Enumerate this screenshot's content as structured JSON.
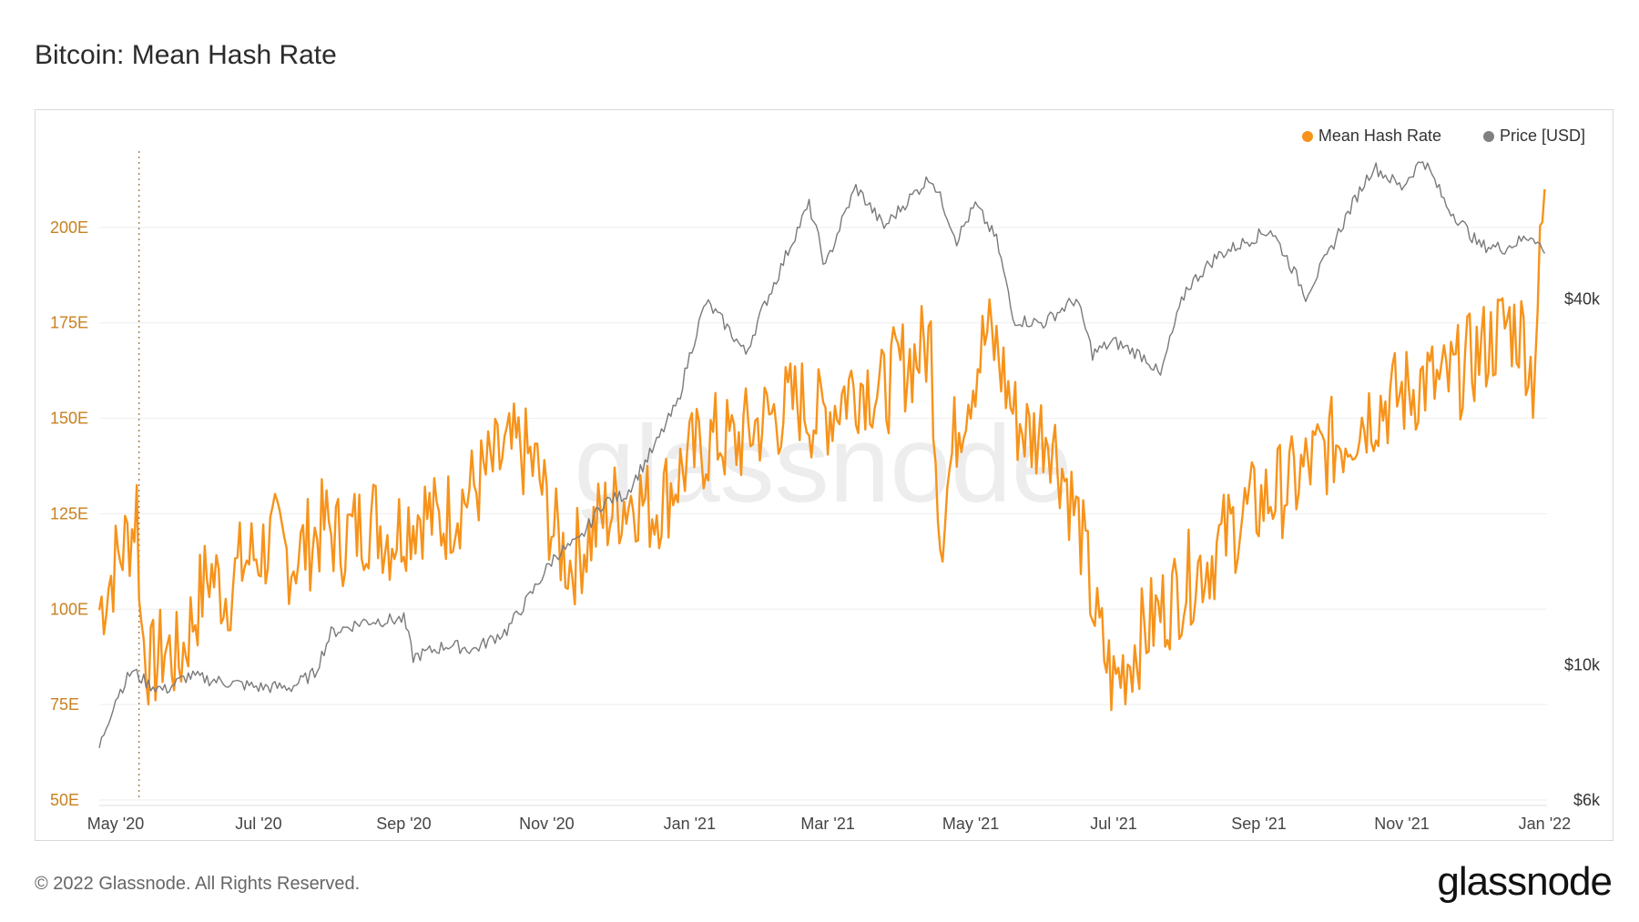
{
  "title": "Bitcoin: Mean Hash Rate",
  "footer": "© 2022 Glassnode. All Rights Reserved.",
  "brand": "glassnode",
  "watermark": "glassnode",
  "legend": [
    {
      "label": "Mean Hash Rate",
      "color": "#f7931a"
    },
    {
      "label": "Price [USD]",
      "color": "#808080"
    }
  ],
  "chart_data": {
    "type": "line",
    "title": "Bitcoin: Mean Hash Rate",
    "x_range": [
      "2020-04-24",
      "2022-01-02"
    ],
    "x_ticks": [
      {
        "label": "May '20",
        "date": "2020-05-01"
      },
      {
        "label": "Jul '20",
        "date": "2020-07-01"
      },
      {
        "label": "Sep '20",
        "date": "2020-09-01"
      },
      {
        "label": "Nov '20",
        "date": "2020-11-01"
      },
      {
        "label": "Jan '21",
        "date": "2021-01-01"
      },
      {
        "label": "Mar '21",
        "date": "2021-03-01"
      },
      {
        "label": "May '21",
        "date": "2021-05-01"
      },
      {
        "label": "Jul '21",
        "date": "2021-07-01"
      },
      {
        "label": "Sep '21",
        "date": "2021-09-01"
      },
      {
        "label": "Nov '21",
        "date": "2021-11-01"
      },
      {
        "label": "Jan '22",
        "date": "2022-01-01"
      }
    ],
    "y_left": {
      "unit": "E",
      "range": [
        50,
        220
      ],
      "ticks": [
        "50E",
        "75E",
        "100E",
        "125E",
        "150E",
        "175E",
        "200E"
      ],
      "color": "#c8801f"
    },
    "y_right": {
      "scale": "log",
      "range": [
        6000,
        70000
      ],
      "ticks": [
        "$6k",
        "$10k",
        "$40k"
      ],
      "color": "#333333"
    },
    "halving_marker": "2020-05-11",
    "grid": true,
    "legend_position": "top-right",
    "series": [
      {
        "name": "Mean Hash Rate",
        "color": "#f7931a",
        "axis": "left",
        "points": [
          [
            "2020-04-24",
            100
          ],
          [
            "2020-05-01",
            112
          ],
          [
            "2020-05-08",
            121
          ],
          [
            "2020-05-10",
            128
          ],
          [
            "2020-05-12",
            95
          ],
          [
            "2020-05-16",
            84
          ],
          [
            "2020-05-22",
            90
          ],
          [
            "2020-05-28",
            86
          ],
          [
            "2020-06-03",
            98
          ],
          [
            "2020-06-10",
            110
          ],
          [
            "2020-06-17",
            104
          ],
          [
            "2020-06-24",
            112
          ],
          [
            "2020-07-01",
            115
          ],
          [
            "2020-07-08",
            118
          ],
          [
            "2020-07-15",
            113
          ],
          [
            "2020-07-22",
            117
          ],
          [
            "2020-07-29",
            122
          ],
          [
            "2020-08-05",
            118
          ],
          [
            "2020-08-12",
            121
          ],
          [
            "2020-08-19",
            124
          ],
          [
            "2020-08-26",
            119
          ],
          [
            "2020-09-02",
            123
          ],
          [
            "2020-09-09",
            126
          ],
          [
            "2020-09-16",
            122
          ],
          [
            "2020-09-23",
            127
          ],
          [
            "2020-09-30",
            131
          ],
          [
            "2020-10-07",
            136
          ],
          [
            "2020-10-14",
            140
          ],
          [
            "2020-10-21",
            142
          ],
          [
            "2020-10-28",
            136
          ],
          [
            "2020-11-04",
            120
          ],
          [
            "2020-11-11",
            112
          ],
          [
            "2020-11-18",
            118
          ],
          [
            "2020-11-25",
            124
          ],
          [
            "2020-12-02",
            128
          ],
          [
            "2020-12-09",
            130
          ],
          [
            "2020-12-16",
            126
          ],
          [
            "2020-12-23",
            131
          ],
          [
            "2020-12-30",
            138
          ],
          [
            "2021-01-06",
            142
          ],
          [
            "2021-01-13",
            145
          ],
          [
            "2021-01-20",
            143
          ],
          [
            "2021-01-27",
            147
          ],
          [
            "2021-02-03",
            150
          ],
          [
            "2021-02-10",
            152
          ],
          [
            "2021-02-17",
            155
          ],
          [
            "2021-02-24",
            150
          ],
          [
            "2021-03-03",
            153
          ],
          [
            "2021-03-10",
            158
          ],
          [
            "2021-03-17",
            160
          ],
          [
            "2021-03-24",
            156
          ],
          [
            "2021-03-31",
            163
          ],
          [
            "2021-04-07",
            166
          ],
          [
            "2021-04-14",
            170
          ],
          [
            "2021-04-18",
            120
          ],
          [
            "2021-04-25",
            148
          ],
          [
            "2021-05-01",
            160
          ],
          [
            "2021-05-08",
            172
          ],
          [
            "2021-05-12",
            168
          ],
          [
            "2021-05-20",
            150
          ],
          [
            "2021-05-27",
            145
          ],
          [
            "2021-06-03",
            148
          ],
          [
            "2021-06-10",
            135
          ],
          [
            "2021-06-17",
            120
          ],
          [
            "2021-06-24",
            95
          ],
          [
            "2021-07-01",
            80
          ],
          [
            "2021-07-08",
            88
          ],
          [
            "2021-07-15",
            95
          ],
          [
            "2021-07-22",
            100
          ],
          [
            "2021-07-29",
            105
          ],
          [
            "2021-08-05",
            110
          ],
          [
            "2021-08-12",
            114
          ],
          [
            "2021-08-19",
            120
          ],
          [
            "2021-08-26",
            125
          ],
          [
            "2021-09-02",
            128
          ],
          [
            "2021-09-09",
            131
          ],
          [
            "2021-09-16",
            133
          ],
          [
            "2021-09-23",
            138
          ],
          [
            "2021-09-30",
            142
          ],
          [
            "2021-10-07",
            145
          ],
          [
            "2021-10-14",
            150
          ],
          [
            "2021-10-21",
            153
          ],
          [
            "2021-10-28",
            155
          ],
          [
            "2021-11-04",
            157
          ],
          [
            "2021-11-11",
            160
          ],
          [
            "2021-11-18",
            158
          ],
          [
            "2021-11-25",
            162
          ],
          [
            "2021-12-02",
            166
          ],
          [
            "2021-12-09",
            170
          ],
          [
            "2021-12-16",
            175
          ],
          [
            "2021-12-23",
            172
          ],
          [
            "2021-12-27",
            160
          ],
          [
            "2022-01-01",
            210
          ]
        ]
      },
      {
        "name": "Price [USD]",
        "color": "#7a7a7a",
        "axis": "right",
        "points": [
          [
            "2020-04-24",
            7300
          ],
          [
            "2020-05-01",
            8800
          ],
          [
            "2020-05-08",
            9800
          ],
          [
            "2020-05-15",
            9300
          ],
          [
            "2020-05-22",
            9100
          ],
          [
            "2020-06-01",
            9600
          ],
          [
            "2020-06-15",
            9400
          ],
          [
            "2020-07-01",
            9200
          ],
          [
            "2020-07-15",
            9200
          ],
          [
            "2020-07-25",
            9700
          ],
          [
            "2020-08-01",
            11300
          ],
          [
            "2020-08-15",
            11800
          ],
          [
            "2020-09-01",
            11900
          ],
          [
            "2020-09-05",
            10300
          ],
          [
            "2020-09-20",
            10800
          ],
          [
            "2020-10-01",
            10600
          ],
          [
            "2020-10-15",
            11400
          ],
          [
            "2020-10-25",
            13000
          ],
          [
            "2020-11-05",
            15200
          ],
          [
            "2020-11-15",
            16000
          ],
          [
            "2020-11-25",
            18500
          ],
          [
            "2020-12-05",
            19100
          ],
          [
            "2020-12-17",
            22800
          ],
          [
            "2020-12-27",
            27000
          ],
          [
            "2021-01-08",
            39500
          ],
          [
            "2021-01-15",
            36800
          ],
          [
            "2021-01-25",
            32500
          ],
          [
            "2021-02-08",
            44000
          ],
          [
            "2021-02-21",
            57000
          ],
          [
            "2021-02-28",
            45000
          ],
          [
            "2021-03-13",
            61000
          ],
          [
            "2021-03-25",
            52500
          ],
          [
            "2021-04-14",
            63500
          ],
          [
            "2021-04-25",
            50000
          ],
          [
            "2021-05-03",
            57000
          ],
          [
            "2021-05-12",
            50000
          ],
          [
            "2021-05-19",
            37000
          ],
          [
            "2021-06-01",
            36500
          ],
          [
            "2021-06-15",
            40000
          ],
          [
            "2021-06-22",
            32500
          ],
          [
            "2021-07-01",
            34000
          ],
          [
            "2021-07-15",
            32000
          ],
          [
            "2021-07-21",
            29800
          ],
          [
            "2021-08-01",
            41500
          ],
          [
            "2021-08-14",
            47000
          ],
          [
            "2021-09-06",
            52000
          ],
          [
            "2021-09-21",
            40500
          ],
          [
            "2021-10-01",
            47500
          ],
          [
            "2021-10-20",
            66000
          ],
          [
            "2021-11-01",
            61000
          ],
          [
            "2021-11-10",
            68000
          ],
          [
            "2021-11-20",
            57000
          ],
          [
            "2021-12-04",
            49000
          ],
          [
            "2021-12-15",
            48500
          ],
          [
            "2021-12-27",
            51000
          ],
          [
            "2022-01-01",
            47500
          ]
        ]
      }
    ]
  }
}
